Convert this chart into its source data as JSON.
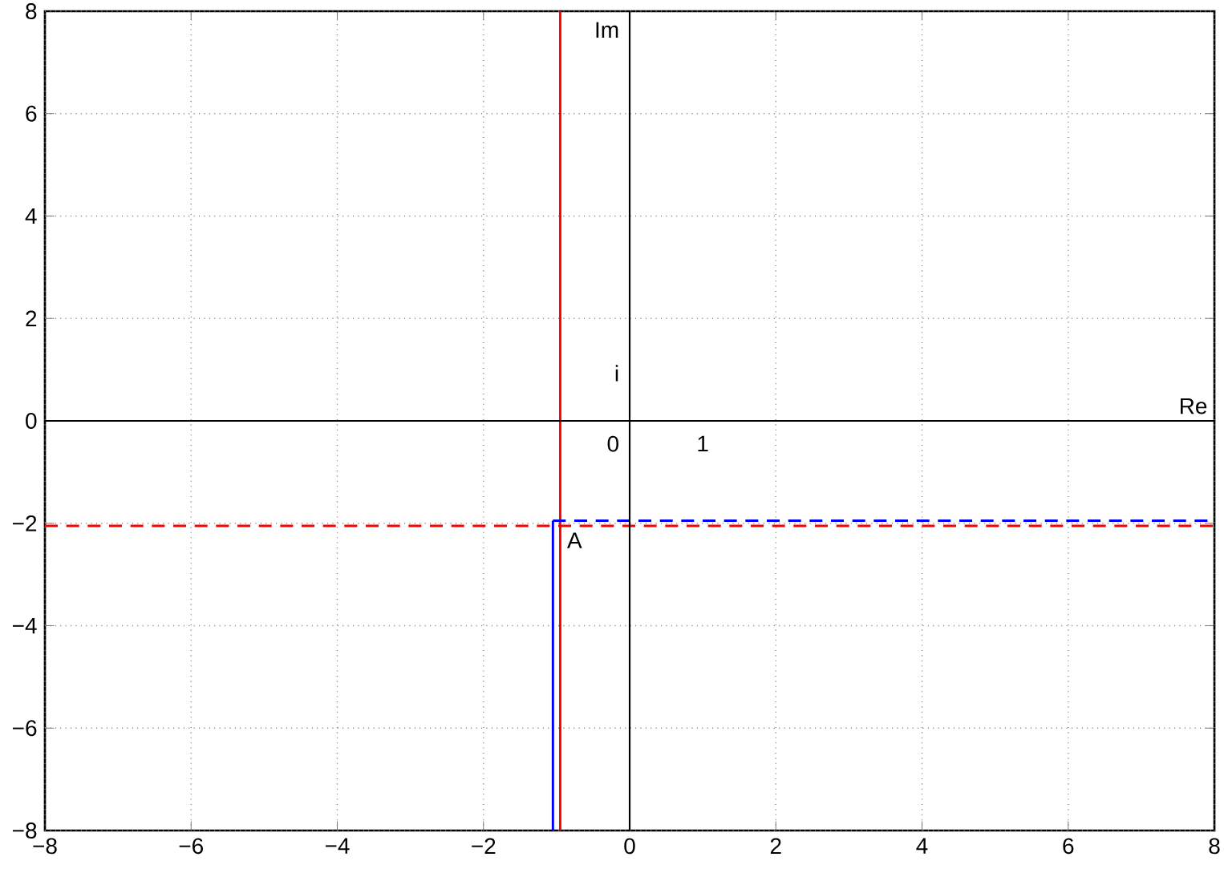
{
  "chart_data": {
    "type": "line",
    "xlim": [
      -8,
      8
    ],
    "ylim": [
      -8,
      8
    ],
    "xticks": [
      {
        "value": -8,
        "label": "−8"
      },
      {
        "value": -6,
        "label": "−6"
      },
      {
        "value": -4,
        "label": "−4"
      },
      {
        "value": -2,
        "label": "−2"
      },
      0,
      2,
      4,
      6,
      8
    ],
    "yticks": [
      {
        "value": -8,
        "label": "−8"
      },
      {
        "value": -6,
        "label": "−6"
      },
      {
        "value": -4,
        "label": "−4"
      },
      {
        "value": -2,
        "label": "−2"
      },
      0,
      2,
      4,
      6,
      8
    ],
    "grid": true,
    "marker": "none",
    "series": [
      {
        "color": "#ff0000",
        "line_style": "solid",
        "x": [
          -0.95,
          -0.95
        ],
        "values": [
          -8,
          8
        ]
      },
      {
        "color": "#0000ff",
        "line_style": "solid",
        "x": [
          -1.05,
          -1.05
        ],
        "values": [
          -8,
          -1.95
        ]
      },
      {
        "color": "#0000ff",
        "line_style": "dashed",
        "x": [
          -1.05,
          8
        ],
        "values": [
          -1.95,
          -1.95
        ]
      },
      {
        "color": "#ff0000",
        "line_style": "dashed",
        "x": [
          -8,
          8
        ],
        "values": [
          -2.05,
          -2.05
        ]
      }
    ],
    "annotations": [
      "Im",
      "Re",
      "0",
      "1",
      "i",
      {
        "text": "A",
        "x": -0.95,
        "y": -2.05
      }
    ]
  }
}
